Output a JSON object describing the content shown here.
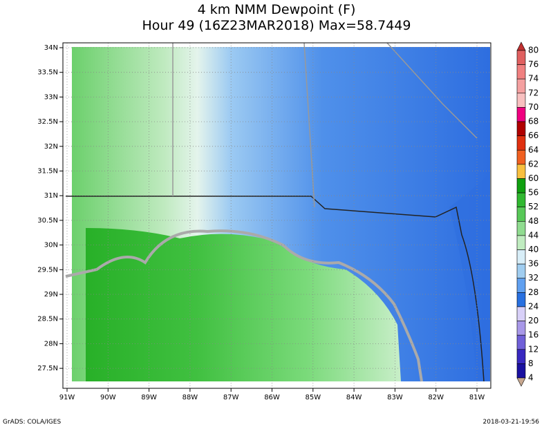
{
  "title": {
    "line1": "4 km NMM Dewpoint (F)",
    "line2": "Hour 49 (16Z23MAR2018) Max=58.7449"
  },
  "map": {
    "lat_labels": [
      "34N",
      "33.5N",
      "33N",
      "32.5N",
      "32N",
      "31.5N",
      "31N",
      "30.5N",
      "30N",
      "29.5N",
      "29N",
      "28.5N",
      "28N",
      "27.5N"
    ],
    "lon_labels": [
      "91W",
      "90W",
      "89W",
      "88W",
      "87W",
      "86W",
      "85W",
      "84W",
      "83W",
      "82W",
      "81W"
    ]
  },
  "colorbar": {
    "labels": [
      80,
      76,
      74,
      72,
      70,
      68,
      66,
      64,
      62,
      60,
      56,
      52,
      48,
      44,
      40,
      36,
      32,
      28,
      24,
      20,
      16,
      12,
      8,
      4
    ],
    "colors": [
      "#c03030",
      "#e06060",
      "#f08080",
      "#f4a0a0",
      "#f8c0c0",
      "#f00080",
      "#b00000",
      "#e03010",
      "#f06020",
      "#f8c040",
      "#10a010",
      "#30b830",
      "#58c858",
      "#90dc90",
      "#c0ecc0",
      "#d8eef8",
      "#a0cdf0",
      "#60a0f0",
      "#2870e0",
      "#d8d0f8",
      "#a898e8",
      "#7060d8",
      "#3828c0",
      "#1a10a0",
      "#c8a890"
    ]
  },
  "footer": {
    "left": "GrADS: COLA/IGES",
    "right": "2018-03-21-19:56"
  }
}
